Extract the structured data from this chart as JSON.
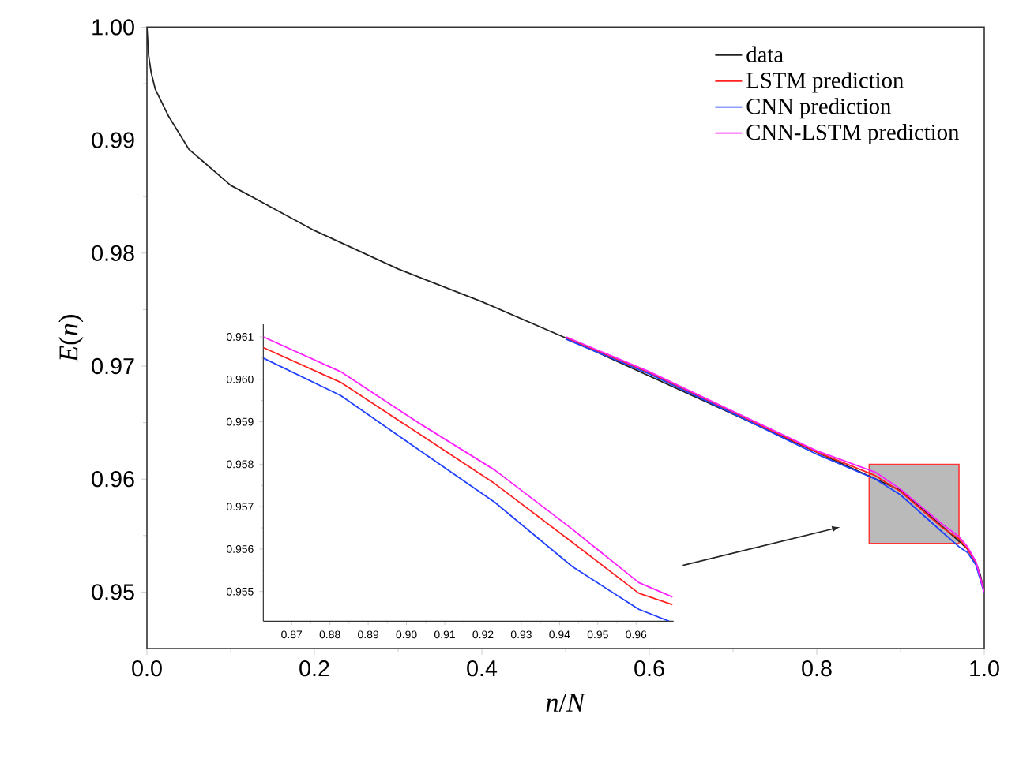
{
  "chart_data": [
    {
      "type": "line",
      "xlabel": "*n*/*N*",
      "ylabel": "*E*(*n*)",
      "xlim": [
        0,
        1
      ],
      "ylim": [
        0.945,
        1.0
      ],
      "xticks": [
        {
          "value": 0,
          "label": "0.0"
        },
        0.2,
        0.4,
        0.6,
        0.8,
        {
          "value": 1,
          "label": "1.0"
        }
      ],
      "yticks": [
        0.95,
        0.96,
        0.97,
        0.98,
        0.99,
        {
          "value": 1,
          "label": "1.00"
        }
      ],
      "legend": "top right",
      "series": [
        {
          "name": "data",
          "color": "#222222",
          "x": [
            0,
            0.002,
            0.005,
            0.01,
            0.026,
            0.05,
            0.1,
            0.15,
            0.2,
            0.3,
            0.4,
            0.5,
            0.6,
            0.7,
            0.8,
            0.87,
            0.9,
            0.95,
            0.97,
            0.98,
            0.99,
            0.995,
            1.0
          ],
          "values": [
            1.0,
            0.9975,
            0.996,
            0.9945,
            0.9921,
            0.9892,
            0.986,
            0.984,
            0.982,
            0.9786,
            0.9757,
            0.9725,
            null,
            null,
            null,
            null,
            0.959,
            0.9558,
            0.9545,
            0.9538,
            0.9526,
            0.9516,
            0.95
          ]
        },
        {
          "name": "LSTM prediction",
          "color": "#ff2020",
          "x": [
            0.5,
            0.6,
            0.7,
            0.8,
            0.87,
            0.9,
            0.95,
            0.97,
            0.98,
            0.99,
            1.0
          ],
          "values": [
            0.9725,
            0.9694,
            0.9659,
            0.9624,
            0.9603,
            0.9589,
            0.9557,
            0.9547,
            0.9538,
            0.9526,
            0.95
          ]
        },
        {
          "name": "CNN prediction",
          "color": "#2040ff",
          "x": [
            0.5,
            0.6,
            0.7,
            0.8,
            0.87,
            0.9,
            0.95,
            0.97,
            0.98,
            0.99,
            1.0
          ],
          "values": [
            0.9724,
            0.9693,
            0.9658,
            0.9622,
            0.96,
            0.9586,
            0.9553,
            0.954,
            0.9535,
            0.9524,
            0.9499
          ]
        },
        {
          "name": "CNN-LSTM prediction",
          "color": "#ff20ff",
          "x": [
            0.5,
            0.6,
            0.7,
            0.8,
            0.87,
            0.9,
            0.95,
            0.97,
            0.98,
            0.99,
            1.0
          ],
          "values": [
            0.9726,
            0.9695,
            0.966,
            0.9625,
            0.9606,
            0.9591,
            0.956,
            0.9549,
            0.954,
            0.9527,
            0.95
          ]
        }
      ]
    },
    {
      "type": "line",
      "xlim": [
        0.8626,
        0.9698
      ],
      "ylim": [
        0.9543,
        0.9613
      ],
      "xticks": [
        0.87,
        0.88,
        0.89,
        {
          "value": 0.9,
          "label": "0.90"
        },
        0.91,
        0.92,
        0.93,
        0.94,
        0.95,
        0.96
      ],
      "yticks": [
        0.955,
        0.956,
        0.957,
        0.958,
        0.959,
        {
          "value": 0.96,
          "label": "0.960"
        },
        0.961
      ],
      "series": [
        {
          "color": "#ff2020",
          "x": [
            0.8626,
            0.8828,
            0.9029,
            0.9231,
            0.9433,
            0.9607,
            0.9695
          ],
          "values": [
            0.96075,
            0.95993,
            0.95874,
            0.95754,
            0.95616,
            0.95496,
            0.95469
          ]
        },
        {
          "color": "#2040ff",
          "x": [
            0.8626,
            0.8828,
            0.9029,
            0.9231,
            0.9433,
            0.9607,
            0.9686
          ],
          "values": [
            0.9605,
            0.95962,
            0.95836,
            0.9571,
            0.95559,
            0.95458,
            0.9543
          ]
        },
        {
          "color": "#ff20ff",
          "x": [
            0.8626,
            0.8828,
            0.9029,
            0.9231,
            0.9433,
            0.9607,
            0.9695
          ],
          "values": [
            0.961,
            0.96018,
            0.95899,
            0.95786,
            0.95647,
            0.95521,
            0.95487
          ]
        }
      ]
    }
  ]
}
